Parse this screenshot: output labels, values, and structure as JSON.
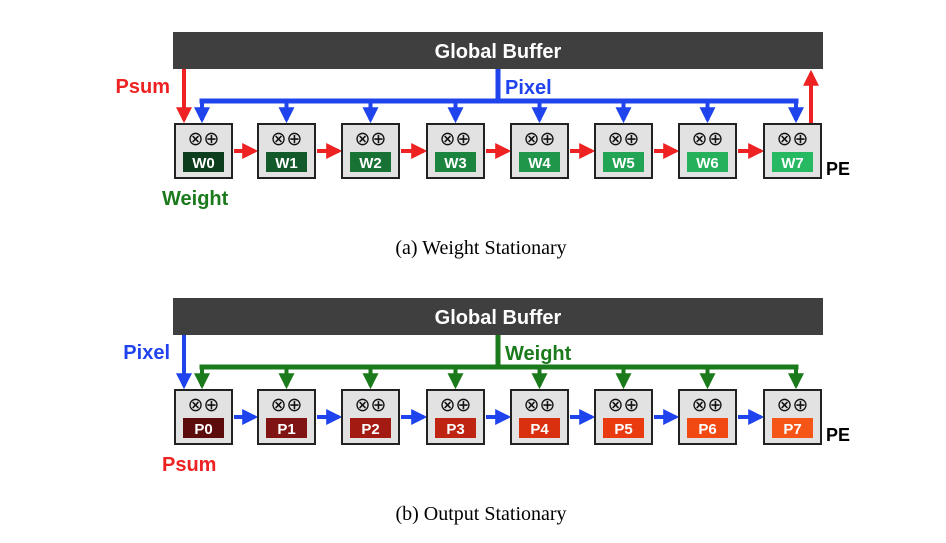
{
  "panels": [
    {
      "buffer_label": "Global Buffer",
      "left_label": "Psum",
      "mid_label": "Pixel",
      "under_label": "Weight",
      "pe_label": "PE",
      "ops": "⊗⊕",
      "cells": [
        "W0",
        "W1",
        "W2",
        "W3",
        "W4",
        "W5",
        "W6",
        "W7"
      ],
      "cell_colors": [
        "#0c3d1c",
        "#125a2a",
        "#177234",
        "#1b8540",
        "#1f964a",
        "#22a455",
        "#25b05c",
        "#27b862"
      ],
      "colors": {
        "left": "#ee2222",
        "broadcast": "#1f44ee",
        "chain": "#ee2222",
        "under": "#1b7a1b"
      },
      "caption": "(a) Weight Stationary"
    },
    {
      "buffer_label": "Global Buffer",
      "left_label": "Pixel",
      "mid_label": "Weight",
      "under_label": "Psum",
      "pe_label": "PE",
      "ops": "⊗⊕",
      "cells": [
        "P0",
        "P1",
        "P2",
        "P3",
        "P4",
        "P5",
        "P6",
        "P7"
      ],
      "cell_colors": [
        "#5c0c0c",
        "#801313",
        "#a31a12",
        "#bf2312",
        "#d9300f",
        "#e93a10",
        "#f24812",
        "#f65518"
      ],
      "colors": {
        "left": "#1f44ee",
        "broadcast": "#1b7a1b",
        "chain": "#1f44ee",
        "under": "#ee2222"
      },
      "caption": "(b) Output Stationary"
    }
  ]
}
